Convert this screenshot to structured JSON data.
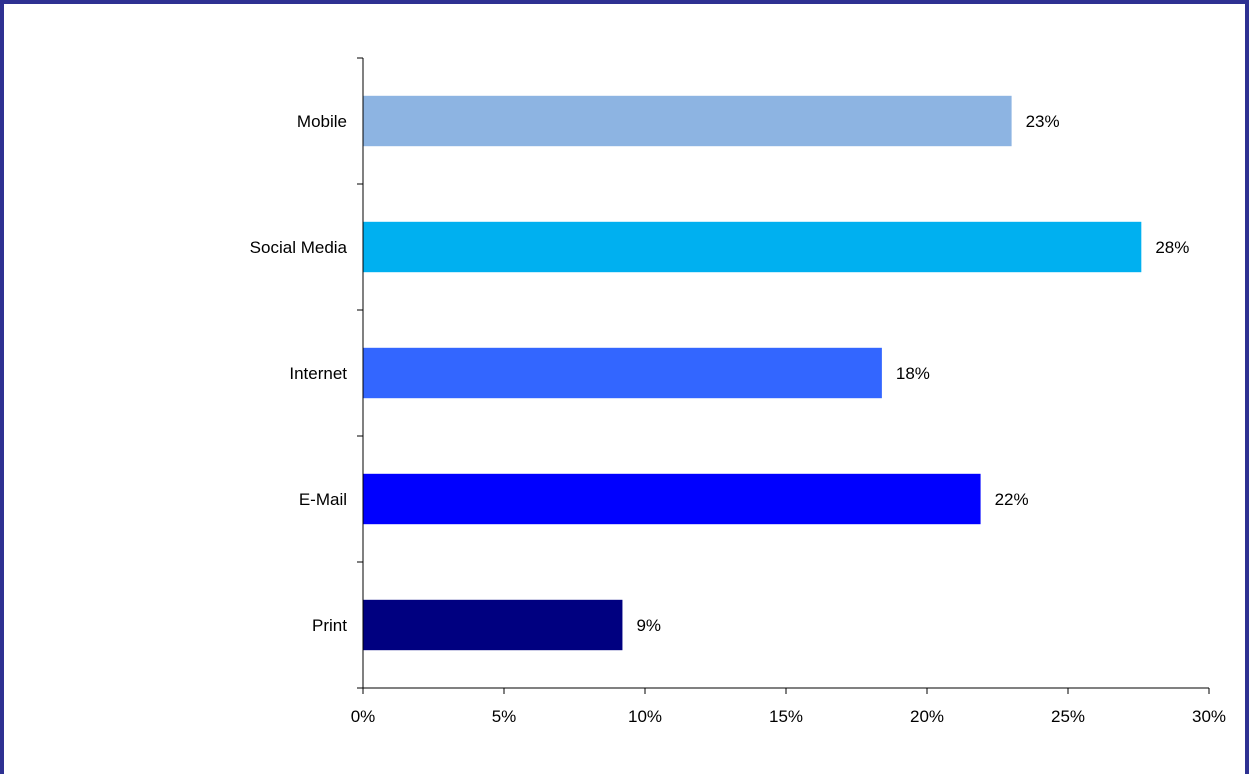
{
  "chart_data": {
    "type": "bar",
    "orientation": "horizontal",
    "title": "",
    "xlabel": "",
    "ylabel": "",
    "categories": [
      "Print",
      "E-Mail",
      "Internet",
      "Social Media",
      "Mobile"
    ],
    "values": [
      9.2,
      21.9,
      18.4,
      27.6,
      23.0
    ],
    "data_labels": [
      "9%",
      "22%",
      "18%",
      "28%",
      "23%"
    ],
    "colors": [
      "#000080",
      "#0000ff",
      "#3366ff",
      "#00b0f0",
      "#8db4e2"
    ],
    "xlim": [
      0,
      30
    ],
    "x_ticks": [
      0,
      5,
      10,
      15,
      20,
      25,
      30
    ],
    "x_tick_labels": [
      "0%",
      "5%",
      "10%",
      "15%",
      "20%",
      "25%",
      "30%"
    ],
    "grid": false,
    "legend": "none"
  },
  "frame": {
    "border_color": "#2e3192"
  }
}
